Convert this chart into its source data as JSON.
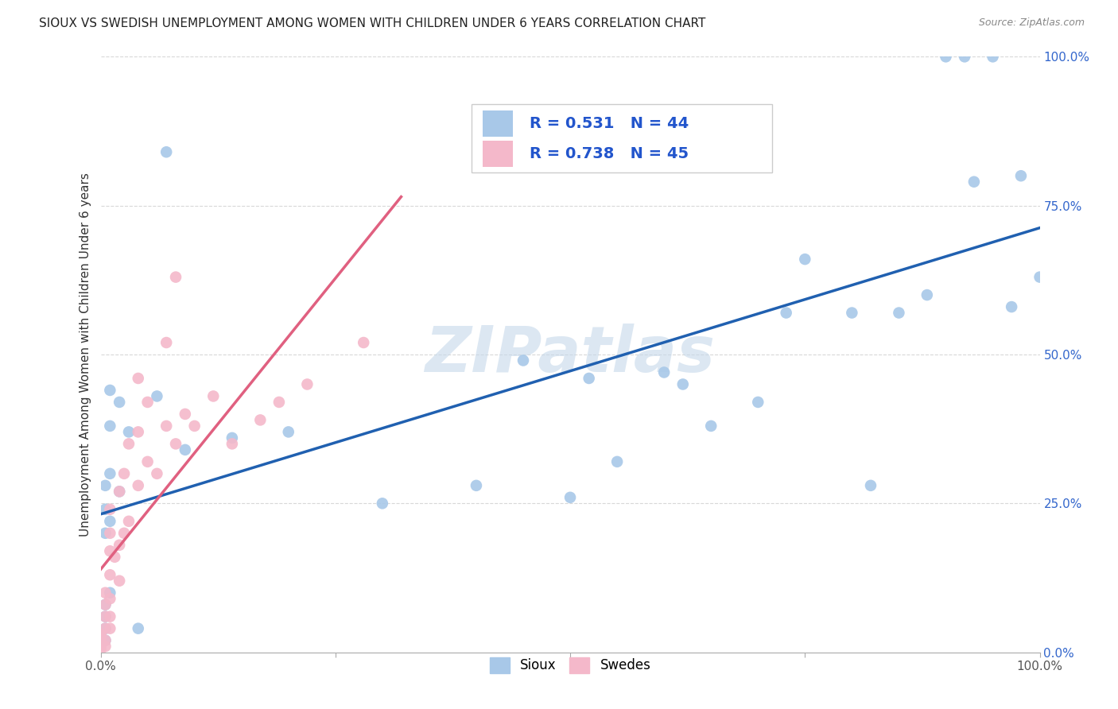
{
  "title": "SIOUX VS SWEDISH UNEMPLOYMENT AMONG WOMEN WITH CHILDREN UNDER 6 YEARS CORRELATION CHART",
  "source": "Source: ZipAtlas.com",
  "ylabel": "Unemployment Among Women with Children Under 6 years",
  "watermark": "ZIPatlas",
  "legend_sioux_label": "Sioux",
  "legend_swedes_label": "Swedes",
  "sioux_R": 0.531,
  "sioux_N": 44,
  "swedes_R": 0.738,
  "swedes_N": 45,
  "sioux_color": "#a8c8e8",
  "swedes_color": "#f4b8ca",
  "sioux_line_color": "#2060b0",
  "swedes_line_color": "#e06080",
  "xlim": [
    0.0,
    1.0
  ],
  "ylim": [
    0.0,
    1.0
  ],
  "xticks": [
    0.0,
    0.25,
    0.5,
    0.75,
    1.0
  ],
  "yticks": [
    0.0,
    0.25,
    0.5,
    0.75,
    1.0
  ],
  "xtick_labels": [
    "0.0%",
    "",
    "",
    "",
    "100.0%"
  ],
  "ytick_labels_right": [
    "0.0%",
    "25.0%",
    "50.0%",
    "75.0%",
    "100.0%"
  ],
  "sioux_x": [
    0.005,
    0.005,
    0.005,
    0.005,
    0.005,
    0.005,
    0.005,
    0.01,
    0.01,
    0.01,
    0.01,
    0.01,
    0.02,
    0.02,
    0.03,
    0.04,
    0.06,
    0.07,
    0.09,
    0.14,
    0.2,
    0.3,
    0.4,
    0.45,
    0.5,
    0.52,
    0.55,
    0.6,
    0.62,
    0.65,
    0.7,
    0.73,
    0.75,
    0.8,
    0.82,
    0.85,
    0.88,
    0.9,
    0.92,
    0.93,
    0.95,
    0.97,
    0.98,
    1.0
  ],
  "sioux_y": [
    0.02,
    0.04,
    0.06,
    0.08,
    0.2,
    0.24,
    0.28,
    0.1,
    0.22,
    0.3,
    0.38,
    0.44,
    0.27,
    0.42,
    0.37,
    0.04,
    0.43,
    0.84,
    0.34,
    0.36,
    0.37,
    0.25,
    0.28,
    0.49,
    0.26,
    0.46,
    0.32,
    0.47,
    0.45,
    0.38,
    0.42,
    0.57,
    0.66,
    0.57,
    0.28,
    0.57,
    0.6,
    1.0,
    1.0,
    0.79,
    1.0,
    0.58,
    0.8,
    0.63
  ],
  "swedes_x": [
    0.0,
    0.0,
    0.0,
    0.0,
    0.0,
    0.0,
    0.005,
    0.005,
    0.005,
    0.005,
    0.005,
    0.005,
    0.01,
    0.01,
    0.01,
    0.01,
    0.01,
    0.01,
    0.01,
    0.015,
    0.02,
    0.02,
    0.02,
    0.025,
    0.025,
    0.03,
    0.03,
    0.04,
    0.04,
    0.04,
    0.05,
    0.05,
    0.06,
    0.07,
    0.07,
    0.08,
    0.08,
    0.09,
    0.1,
    0.12,
    0.14,
    0.17,
    0.19,
    0.22,
    0.28
  ],
  "swedes_y": [
    0.005,
    0.01,
    0.015,
    0.02,
    0.025,
    0.03,
    0.01,
    0.02,
    0.04,
    0.06,
    0.08,
    0.1,
    0.04,
    0.06,
    0.09,
    0.13,
    0.17,
    0.2,
    0.24,
    0.16,
    0.12,
    0.18,
    0.27,
    0.2,
    0.3,
    0.22,
    0.35,
    0.28,
    0.37,
    0.46,
    0.32,
    0.42,
    0.3,
    0.38,
    0.52,
    0.35,
    0.63,
    0.4,
    0.38,
    0.43,
    0.35,
    0.39,
    0.42,
    0.45,
    0.52
  ],
  "sioux_line": [
    0.0,
    1.0,
    0.195,
    0.78
  ],
  "swedes_line": [
    0.0,
    0.3,
    0.0,
    0.93
  ],
  "background_color": "#ffffff",
  "grid_color": "#d8d8d8",
  "title_fontsize": 11,
  "axis_label_fontsize": 11,
  "tick_fontsize": 11,
  "legend_fontsize": 14,
  "watermark_fontsize": 58,
  "watermark_color": "#c5d8ea",
  "watermark_alpha": 0.6
}
